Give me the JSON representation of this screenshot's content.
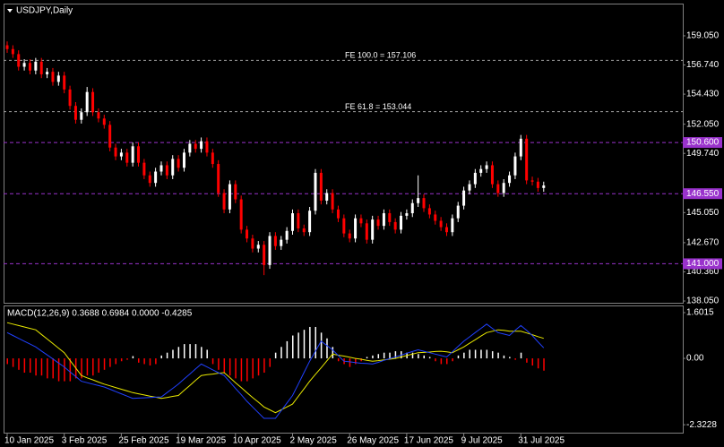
{
  "chart_data": [
    {
      "type": "candlestick",
      "title": "USDJPY,Daily",
      "categories": [
        "10 Jan 2025",
        null,
        null,
        null,
        null,
        null,
        null,
        null,
        null,
        null,
        "3 Feb 2025",
        null,
        null,
        null,
        null,
        null,
        null,
        null,
        null,
        null,
        "25 Feb 2025",
        null,
        null,
        null,
        null,
        null,
        null,
        null,
        null,
        null,
        "19 Mar 2025",
        null,
        null,
        null,
        null,
        null,
        null,
        null,
        null,
        null,
        "10 Apr 2025",
        null,
        null,
        null,
        null,
        null,
        null,
        null,
        null,
        null,
        "2 May 2025",
        null,
        null,
        null,
        null,
        null,
        null,
        null,
        null,
        null,
        "26 May 2025",
        null,
        null,
        null,
        null,
        null,
        null,
        null,
        null,
        null,
        "17 Jun 2025",
        null,
        null,
        null,
        null,
        null,
        null,
        null,
        null,
        null,
        "9 Jul 2025",
        null,
        null,
        null,
        null,
        null,
        null,
        null,
        null,
        null,
        "31 Jul 2025",
        null,
        null,
        null,
        null
      ],
      "open": [
        158.3,
        158.0,
        157.6,
        156.6,
        156.9,
        156.3,
        157.0,
        156.0,
        156.2,
        155.4,
        155.9,
        154.8,
        153.5,
        152.4,
        153.0,
        154.6,
        153.0,
        152.5,
        152.0,
        150.2,
        149.5,
        149.8,
        149.0,
        150.3,
        149.0,
        148.0,
        147.4,
        148.3,
        148.8,
        148.0,
        149.3,
        148.6,
        149.8,
        150.5,
        150.1,
        150.7,
        149.8,
        148.9,
        146.6,
        145.3,
        147.3,
        146.1,
        143.7,
        143.0,
        142.2,
        142.5,
        140.9,
        143.2,
        142.4,
        142.9,
        143.6,
        145.0,
        143.8,
        143.5,
        145.2,
        148.2,
        146.0,
        146.6,
        145.3,
        144.6,
        143.4,
        143.0,
        144.6,
        144.2,
        142.9,
        144.5,
        144.0,
        145.0,
        144.3,
        143.7,
        144.8,
        145.0,
        145.8,
        146.2,
        145.4,
        144.9,
        144.4,
        143.9,
        143.5,
        144.6,
        145.6,
        146.8,
        147.3,
        148.2,
        148.5,
        148.8,
        147.3,
        146.6,
        147.4,
        148.0,
        149.5,
        150.9,
        147.6,
        147.5,
        147.0
      ],
      "high": [
        158.6,
        158.3,
        157.9,
        157.2,
        157.2,
        157.3,
        157.3,
        156.5,
        156.5,
        156.2,
        156.2,
        155.1,
        153.8,
        153.3,
        155.0,
        154.9,
        153.3,
        152.8,
        152.3,
        150.5,
        150.1,
        150.1,
        150.6,
        150.6,
        149.3,
        148.3,
        148.6,
        149.1,
        149.1,
        149.6,
        149.6,
        150.1,
        150.8,
        150.8,
        151.0,
        151.0,
        150.1,
        149.2,
        146.9,
        147.6,
        147.6,
        146.4,
        144.0,
        143.3,
        142.8,
        142.8,
        143.5,
        143.5,
        143.2,
        143.9,
        145.3,
        145.3,
        144.1,
        145.5,
        148.5,
        148.5,
        146.9,
        146.9,
        145.6,
        144.9,
        143.7,
        144.9,
        144.9,
        144.5,
        144.8,
        144.8,
        145.3,
        145.3,
        144.6,
        145.1,
        145.3,
        146.1,
        148.0,
        146.5,
        145.7,
        145.2,
        144.7,
        144.2,
        144.9,
        145.9,
        147.1,
        147.6,
        148.5,
        148.8,
        149.1,
        149.1,
        147.6,
        147.7,
        148.3,
        149.8,
        151.2,
        151.2,
        147.9,
        147.8,
        147.5
      ],
      "low": [
        157.7,
        157.3,
        156.3,
        156.3,
        156.0,
        156.0,
        155.7,
        155.7,
        155.1,
        155.1,
        154.5,
        153.2,
        152.1,
        152.1,
        152.7,
        152.7,
        152.2,
        151.7,
        149.9,
        149.2,
        149.2,
        148.7,
        148.7,
        148.7,
        147.7,
        147.1,
        147.1,
        148.0,
        147.7,
        147.7,
        148.3,
        148.3,
        149.5,
        149.8,
        149.8,
        149.5,
        148.6,
        146.3,
        145.0,
        145.0,
        145.8,
        143.4,
        142.7,
        141.9,
        141.9,
        140.1,
        140.6,
        142.1,
        142.1,
        142.6,
        143.3,
        143.5,
        143.2,
        143.2,
        144.9,
        145.7,
        145.7,
        145.0,
        144.3,
        143.1,
        142.7,
        142.7,
        143.9,
        142.6,
        142.6,
        143.7,
        143.7,
        144.0,
        143.4,
        143.4,
        144.5,
        144.7,
        145.5,
        145.1,
        144.6,
        144.1,
        143.6,
        143.2,
        143.2,
        144.3,
        145.3,
        146.5,
        147.0,
        147.9,
        148.2,
        147.0,
        146.3,
        146.3,
        147.1,
        147.7,
        149.2,
        147.3,
        147.2,
        146.7,
        146.7
      ],
      "close": [
        158.0,
        157.6,
        156.6,
        156.9,
        156.3,
        157.0,
        156.0,
        156.2,
        155.4,
        155.9,
        154.8,
        153.5,
        152.4,
        153.0,
        154.6,
        153.0,
        152.5,
        152.0,
        150.2,
        149.5,
        149.8,
        149.0,
        150.3,
        149.0,
        148.0,
        147.4,
        148.3,
        148.8,
        148.0,
        149.3,
        148.6,
        149.8,
        150.5,
        150.1,
        150.7,
        149.8,
        148.9,
        146.6,
        145.3,
        147.3,
        146.1,
        143.7,
        143.0,
        142.2,
        142.5,
        140.9,
        143.2,
        142.4,
        142.9,
        143.6,
        145.0,
        143.8,
        143.5,
        145.2,
        148.2,
        146.0,
        146.6,
        145.3,
        144.6,
        143.4,
        143.0,
        144.6,
        144.2,
        142.9,
        144.5,
        144.0,
        145.0,
        144.3,
        143.7,
        144.8,
        145.0,
        145.8,
        146.2,
        145.4,
        144.9,
        144.4,
        143.9,
        143.5,
        144.6,
        145.6,
        146.8,
        147.3,
        148.2,
        148.5,
        148.8,
        147.3,
        146.6,
        147.4,
        148.0,
        149.5,
        150.9,
        147.6,
        147.5,
        147.0,
        147.2
      ],
      "up_color": "#ffffff",
      "down_color": "#ff0000",
      "ylim": [
        137.91,
        161.53
      ],
      "yticks": [
        {
          "value": 159.05,
          "label": "159.050"
        },
        {
          "value": 156.74,
          "label": "156.740"
        },
        {
          "value": 154.43,
          "label": "154.430"
        },
        {
          "value": 152.05,
          "label": "152.050"
        },
        {
          "value": 149.74,
          "label": "149.740"
        },
        {
          "value": 145.05,
          "label": "145.050"
        },
        {
          "value": 142.67,
          "label": "142.670"
        },
        {
          "value": 140.36,
          "label": "140.360"
        },
        {
          "value": 138.05,
          "label": "138.050"
        }
      ],
      "fibonacci_levels": [
        {
          "value": 157.106,
          "label": "FE 100.0 = 157.106"
        },
        {
          "value": 153.044,
          "label": "FE 61.8 = 153.044"
        }
      ],
      "price_levels": [
        {
          "value": 150.6,
          "label": "150.600"
        },
        {
          "value": 146.55,
          "label": "146.550"
        },
        {
          "value": 141.0,
          "label": "141.000"
        }
      ],
      "level_color": "#9932cc"
    },
    {
      "type": "macd",
      "title": "MACD(12,26,9) 0.3688 0.6984 0.0000 -0.4285",
      "macd": [
        0.9,
        0.8,
        0.7,
        0.6,
        0.5,
        0.4,
        0.26,
        0.12,
        -0.02,
        -0.16,
        -0.3,
        -0.47,
        -0.63,
        -0.8,
        -0.85,
        -0.9,
        -0.95,
        -1.0,
        -1.08,
        -1.16,
        -1.24,
        -1.32,
        -1.4,
        -1.39,
        -1.38,
        -1.37,
        -1.36,
        -1.35,
        -1.2,
        -1.05,
        -0.9,
        -0.72,
        -0.55,
        -0.37,
        -0.2,
        -0.3,
        -0.4,
        -0.5,
        -0.6,
        -0.82,
        -1.05,
        -1.27,
        -1.5,
        -1.7,
        -1.9,
        -2.1,
        -2.1,
        -2.1,
        -1.83,
        -1.57,
        -1.3,
        -0.9,
        -0.5,
        -0.1,
        0.25,
        0.6,
        0.45,
        0.3,
        0.1,
        -0.1,
        -0.12,
        -0.15,
        -0.17,
        -0.18,
        -0.2,
        -0.14,
        -0.07,
        -0.01,
        0.05,
        0.11,
        0.18,
        0.24,
        0.3,
        0.25,
        0.2,
        0.15,
        0.1,
        0.05,
        0.23,
        0.42,
        0.6,
        0.75,
        0.9,
        1.05,
        1.2,
        1.05,
        0.9,
        0.85,
        0.8,
        0.98,
        1.15,
        0.98,
        0.8,
        0.58,
        0.37
      ],
      "signal": [
        1.25,
        1.2,
        1.15,
        1.1,
        1.05,
        1.0,
        0.84,
        0.68,
        0.52,
        0.36,
        0.2,
        -0.07,
        -0.33,
        -0.6,
        -0.68,
        -0.75,
        -0.83,
        -0.9,
        -0.96,
        -1.02,
        -1.08,
        -1.14,
        -1.2,
        -1.24,
        -1.28,
        -1.32,
        -1.36,
        -1.4,
        -1.37,
        -1.33,
        -1.3,
        -1.12,
        -0.95,
        -0.77,
        -0.6,
        -0.57,
        -0.55,
        -0.52,
        -0.5,
        -0.67,
        -0.85,
        -1.02,
        -1.2,
        -1.37,
        -1.53,
        -1.7,
        -1.8,
        -1.9,
        -1.8,
        -1.7,
        -1.6,
        -1.33,
        -1.07,
        -0.8,
        -0.56,
        -0.33,
        -0.09,
        0.15,
        0.11,
        0.08,
        0.04,
        0.0,
        -0.03,
        -0.07,
        -0.1,
        -0.08,
        -0.05,
        -0.03,
        0.0,
        0.05,
        0.1,
        0.15,
        0.2,
        0.21,
        0.22,
        0.24,
        0.25,
        0.23,
        0.2,
        0.3,
        0.4,
        0.53,
        0.65,
        0.78,
        0.9,
        0.95,
        1.0,
        0.98,
        0.95,
        0.95,
        0.95,
        0.89,
        0.83,
        0.76,
        0.7
      ],
      "histogram": [
        -0.2,
        -0.3,
        -0.4,
        -0.5,
        -0.5,
        -0.6,
        -0.6,
        -0.7,
        -0.7,
        -0.8,
        -0.8,
        -0.8,
        -0.7,
        -0.7,
        -0.6,
        -0.6,
        -0.5,
        -0.4,
        -0.3,
        -0.2,
        -0.1,
        -0.05,
        0.08,
        -0.15,
        -0.2,
        -0.25,
        -0.2,
        0.1,
        0.2,
        0.3,
        0.4,
        0.5,
        0.5,
        0.5,
        0.4,
        0.3,
        -0.2,
        -0.4,
        -0.5,
        -0.6,
        -0.7,
        -0.8,
        -0.8,
        -0.7,
        -0.6,
        -0.5,
        -0.3,
        0.2,
        0.4,
        0.6,
        0.8,
        0.9,
        1.0,
        1.1,
        1.1,
        0.9,
        0.7,
        0.4,
        -0.1,
        -0.2,
        -0.3,
        -0.2,
        -0.1,
        0.05,
        0.1,
        0.15,
        0.2,
        0.2,
        0.25,
        0.25,
        0.2,
        0.2,
        0.15,
        0.1,
        0.05,
        -0.1,
        -0.2,
        -0.2,
        -0.1,
        0.1,
        0.2,
        0.3,
        0.3,
        0.3,
        0.3,
        0.25,
        0.2,
        0.1,
        0.05,
        -0.05,
        0.2,
        -0.15,
        -0.25,
        -0.35,
        -0.43
      ],
      "macd_color": "#2040ff",
      "signal_color": "#e8e800",
      "positive_color": "#ffffff",
      "negative_color": "#ff0000",
      "ylim": [
        -2.6,
        1.82
      ],
      "yticks": [
        1.6015,
        {
          "value": 0,
          "label": "0.00"
        },
        -2.3228
      ]
    }
  ]
}
